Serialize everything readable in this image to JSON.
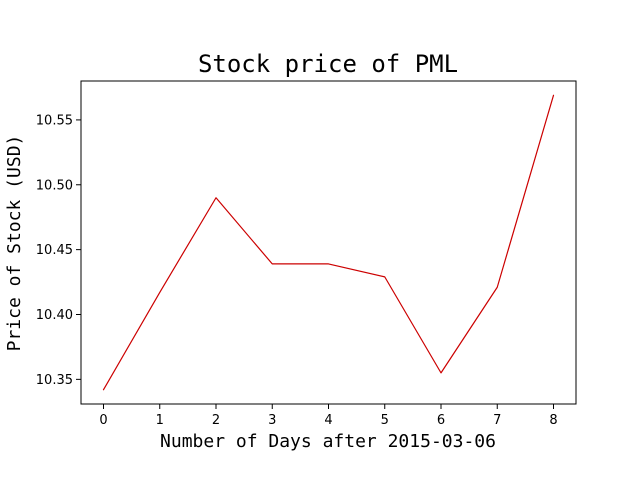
{
  "chart_data": {
    "type": "line",
    "title": "Stock price of PML",
    "xlabel": "Number of Days after 2015-03-06",
    "ylabel": "Price of Stock (USD)",
    "x": [
      0,
      1,
      2,
      3,
      4,
      5,
      6,
      7,
      8
    ],
    "series": [
      {
        "values": [
          10.342,
          10.417,
          10.49,
          10.439,
          10.439,
          10.429,
          10.355,
          10.421,
          10.569
        ],
        "color": "#cc0000"
      }
    ],
    "xlim": [
      -0.4,
      8.4
    ],
    "ylim": [
      10.331,
      10.58
    ],
    "xticks": [
      0,
      1,
      2,
      3,
      4,
      5,
      6,
      7,
      8
    ],
    "xtick_labels": [
      "0",
      "1",
      "2",
      "3",
      "4",
      "5",
      "6",
      "7",
      "8"
    ],
    "yticks": [
      10.35,
      10.4,
      10.45,
      10.5,
      10.55
    ],
    "ytick_labels": [
      "10.35",
      "10.40",
      "10.45",
      "10.50",
      "10.55"
    ],
    "grid": false,
    "legend": false
  }
}
